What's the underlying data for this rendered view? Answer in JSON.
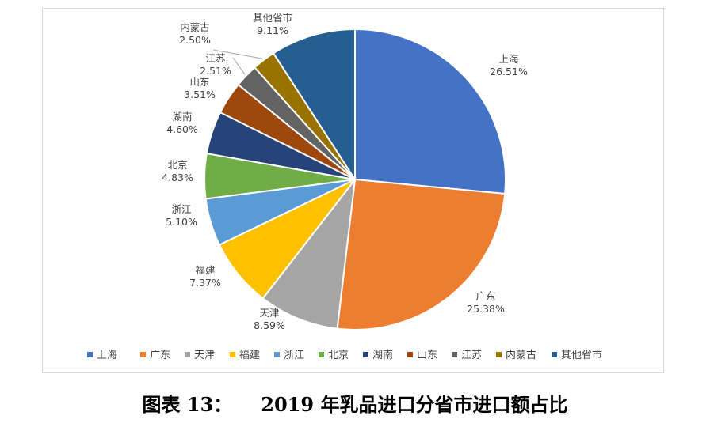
{
  "chart_data": {
    "type": "pie",
    "title": "",
    "categories": [
      "上海",
      "广东",
      "天津",
      "福建",
      "浙江",
      "北京",
      "湖南",
      "山东",
      "江苏",
      "内蒙古",
      "其他省市"
    ],
    "values": [
      26.51,
      25.38,
      8.59,
      7.37,
      5.1,
      4.83,
      4.6,
      3.51,
      2.51,
      2.5,
      9.11
    ],
    "value_labels": [
      "26.51%",
      "25.38%",
      "8.59%",
      "7.37%",
      "5.10%",
      "4.83%",
      "4.60%",
      "3.51%",
      "2.51%",
      "2.50%",
      "9.11%"
    ],
    "colors": [
      "#4472C4",
      "#ED7D31",
      "#A5A5A5",
      "#FFC000",
      "#5B9BD5",
      "#70AD47",
      "#264478",
      "#9E480E",
      "#636363",
      "#997300",
      "#255E91"
    ],
    "legend_position": "bottom",
    "start_angle": "12 o'clock, clockwise"
  },
  "caption": {
    "figure_no": "图表 13：",
    "text": "2019 年乳品进口分省市进口额占比"
  }
}
